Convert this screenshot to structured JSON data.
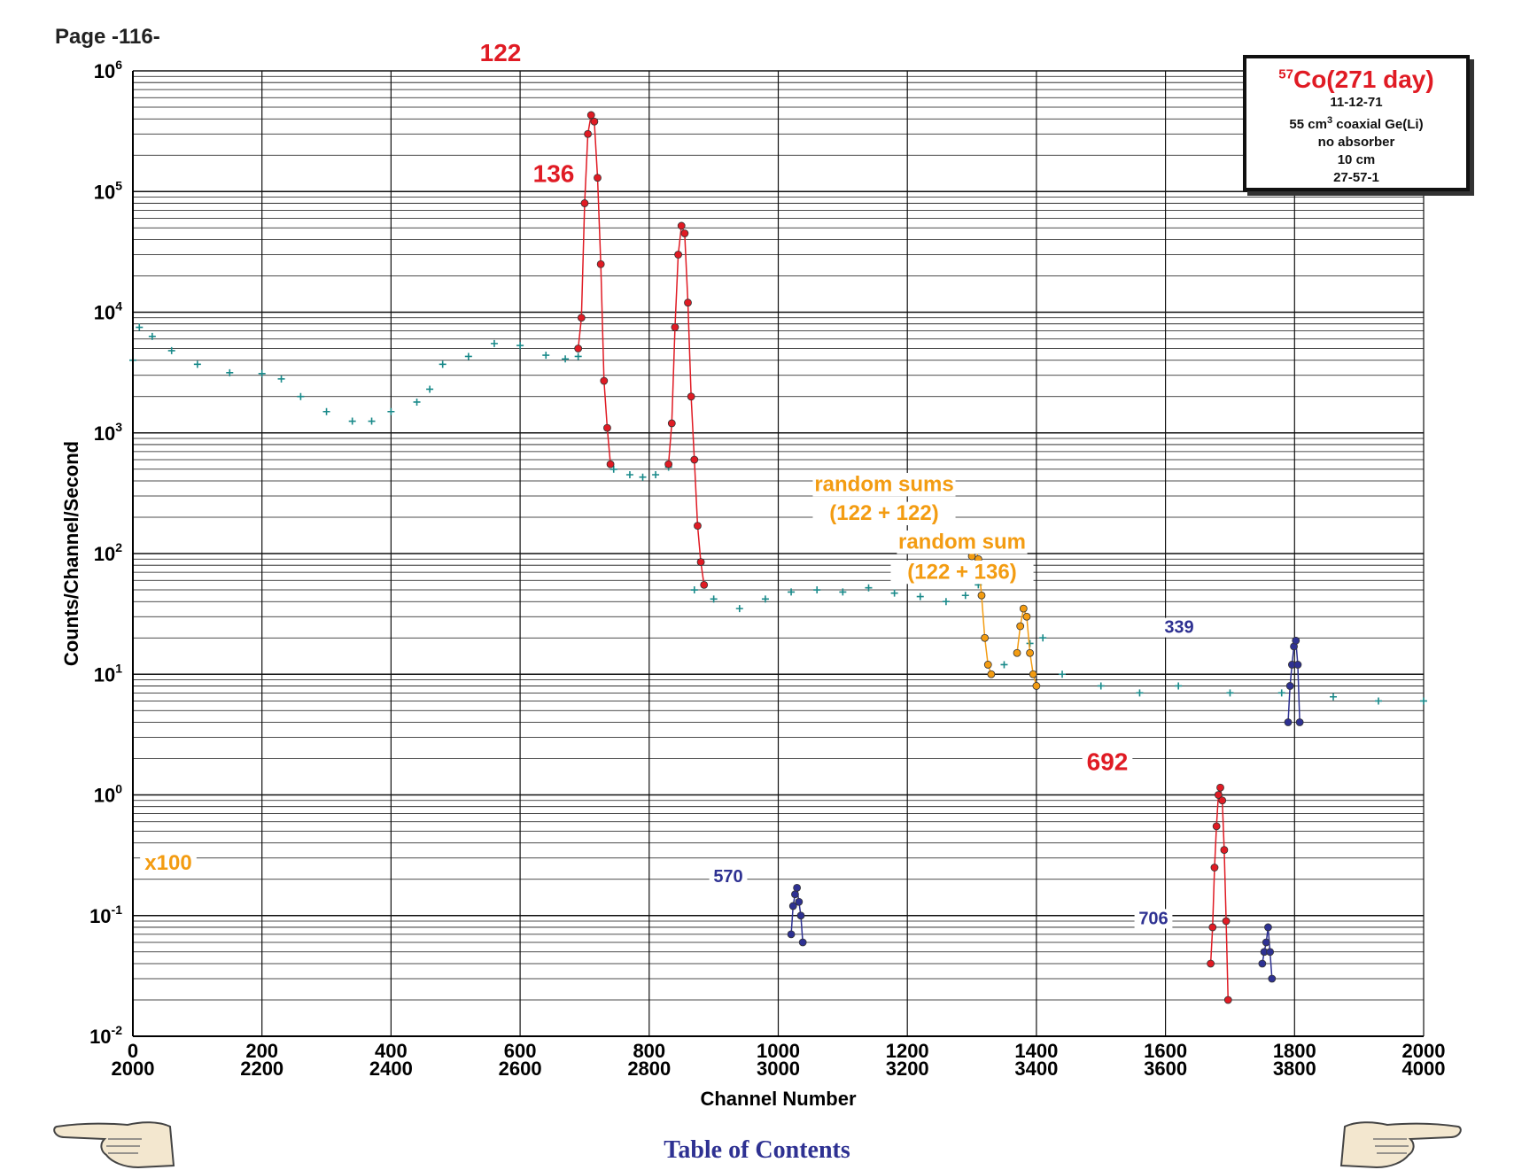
{
  "page": {
    "label": "Page -116-"
  },
  "legend": {
    "isotope_mass": "57",
    "isotope_title": "Co(271 day)",
    "date": "11-12-71",
    "detector_prefix": "55 cm",
    "detector_sup": "3",
    "detector_suffix": " coaxial Ge(Li)",
    "absorber": "no absorber",
    "distance": "10 cm",
    "id": "27-57-1"
  },
  "navigation": {
    "toc_label": "Table of Contents"
  },
  "colors": {
    "peak_red": "#e01b24",
    "sum_orange": "#f39c12",
    "minor_blue": "#2e3192",
    "spectrum_teal": "#1a8a8a",
    "grid": "#111111"
  },
  "icons": {
    "left": "hand-pointing-left-icon",
    "right": "hand-pointing-right-icon"
  },
  "chart_data": {
    "type": "scatter",
    "xlabel": "Channel Number",
    "ylabel": "Counts/Channel/Second",
    "xlim": [
      0,
      2000
    ],
    "x_ticks_bottom": [
      "0",
      "200",
      "400",
      "600",
      "800",
      "1000",
      "1200",
      "1400",
      "1600",
      "1800",
      "2000"
    ],
    "x_ticks_top": [
      "2000",
      "2200",
      "2400",
      "2600",
      "2800",
      "3000",
      "3200",
      "3400",
      "3600",
      "3800",
      "4000"
    ],
    "y_scale": "log",
    "ylim": [
      0.01,
      1000000
    ],
    "y_tick_exponents": [
      "-2",
      "-1",
      "0",
      "1",
      "2",
      "3",
      "4",
      "5",
      "6"
    ],
    "grid": true,
    "series": [
      {
        "name": "spectrum",
        "points": [
          [
            0,
            4000
          ],
          [
            10,
            7500
          ],
          [
            30,
            6300
          ],
          [
            60,
            4800
          ],
          [
            100,
            3700
          ],
          [
            150,
            3150
          ],
          [
            200,
            3100
          ],
          [
            230,
            2800
          ],
          [
            260,
            2000
          ],
          [
            300,
            1500
          ],
          [
            340,
            1250
          ],
          [
            370,
            1250
          ],
          [
            400,
            1500
          ],
          [
            440,
            1800
          ],
          [
            460,
            2300
          ],
          [
            480,
            3700
          ],
          [
            520,
            4300
          ],
          [
            560,
            5500
          ],
          [
            600,
            5300
          ],
          [
            640,
            4400
          ],
          [
            670,
            4100
          ],
          [
            690,
            4300
          ]
        ]
      },
      {
        "name": "spectrum-valley",
        "points": [
          [
            745,
            500
          ],
          [
            770,
            450
          ],
          [
            790,
            430
          ],
          [
            810,
            450
          ],
          [
            830,
            520
          ]
        ]
      },
      {
        "name": "spectrum-plateau",
        "points": [
          [
            870,
            50
          ],
          [
            900,
            42
          ],
          [
            940,
            35
          ],
          [
            980,
            42
          ],
          [
            1020,
            48
          ],
          [
            1060,
            50
          ],
          [
            1100,
            48
          ],
          [
            1140,
            52
          ],
          [
            1180,
            47
          ],
          [
            1220,
            44
          ],
          [
            1260,
            40
          ],
          [
            1290,
            45
          ],
          [
            1310,
            55
          ],
          [
            1330,
            70
          ]
        ]
      },
      {
        "name": "spectrum-step",
        "points": [
          [
            1350,
            12
          ],
          [
            1370,
            15
          ],
          [
            1390,
            18
          ],
          [
            1410,
            20
          ]
        ]
      },
      {
        "name": "tail",
        "points": [
          [
            1440,
            10
          ],
          [
            1500,
            8
          ],
          [
            1560,
            7
          ],
          [
            1620,
            8
          ],
          [
            1700,
            7
          ],
          [
            1780,
            7
          ],
          [
            1860,
            6.5
          ],
          [
            1930,
            6
          ],
          [
            2000,
            6
          ]
        ]
      },
      {
        "name": "peak-122",
        "points": [
          [
            690,
            5000
          ],
          [
            695,
            9000
          ],
          [
            700,
            80000
          ],
          [
            705,
            300000
          ],
          [
            710,
            430000
          ],
          [
            715,
            380000
          ],
          [
            720,
            130000
          ],
          [
            725,
            25000
          ],
          [
            730,
            2700
          ],
          [
            735,
            1100
          ],
          [
            740,
            550
          ]
        ]
      },
      {
        "name": "peak-136",
        "points": [
          [
            830,
            550
          ],
          [
            835,
            1200
          ],
          [
            840,
            7500
          ],
          [
            845,
            30000
          ],
          [
            850,
            52000
          ],
          [
            855,
            45000
          ],
          [
            860,
            12000
          ],
          [
            865,
            2000
          ],
          [
            870,
            600
          ],
          [
            875,
            170
          ],
          [
            880,
            85
          ],
          [
            885,
            55
          ]
        ]
      },
      {
        "name": "sum-122-122",
        "points": [
          [
            1300,
            95
          ],
          [
            1305,
            120
          ],
          [
            1310,
            90
          ],
          [
            1315,
            45
          ],
          [
            1320,
            20
          ],
          [
            1325,
            12
          ],
          [
            1330,
            10
          ]
        ]
      },
      {
        "name": "sum-122-136",
        "points": [
          [
            1370,
            15
          ],
          [
            1375,
            25
          ],
          [
            1380,
            35
          ],
          [
            1385,
            30
          ],
          [
            1390,
            15
          ],
          [
            1395,
            10
          ],
          [
            1400,
            8
          ]
        ]
      },
      {
        "name": "peak-339",
        "points": [
          [
            1790,
            4
          ],
          [
            1793,
            8
          ],
          [
            1796,
            12
          ],
          [
            1799,
            17
          ],
          [
            1802,
            19
          ],
          [
            1805,
            12
          ],
          [
            1808,
            4
          ]
        ]
      },
      {
        "name": "peak-692",
        "points": [
          [
            1670,
            0.04
          ],
          [
            1673,
            0.08
          ],
          [
            1676,
            0.25
          ],
          [
            1679,
            0.55
          ],
          [
            1682,
            1.0
          ],
          [
            1685,
            1.15
          ],
          [
            1688,
            0.9
          ],
          [
            1691,
            0.35
          ],
          [
            1694,
            0.09
          ],
          [
            1697,
            0.02
          ]
        ]
      },
      {
        "name": "peak-570",
        "points": [
          [
            1020,
            0.07
          ],
          [
            1023,
            0.12
          ],
          [
            1026,
            0.15
          ],
          [
            1029,
            0.17
          ],
          [
            1032,
            0.13
          ],
          [
            1035,
            0.1
          ],
          [
            1038,
            0.06
          ]
        ]
      },
      {
        "name": "peak-706",
        "points": [
          [
            1750,
            0.04
          ],
          [
            1753,
            0.05
          ],
          [
            1756,
            0.06
          ],
          [
            1759,
            0.08
          ],
          [
            1762,
            0.05
          ],
          [
            1765,
            0.03
          ]
        ]
      }
    ],
    "scaled_region_note": "x100",
    "annotations": [
      {
        "text": "122",
        "color": "red"
      },
      {
        "text": "136",
        "color": "red"
      },
      {
        "text": "random sums",
        "color": "orange"
      },
      {
        "text": "(122 + 122)",
        "color": "orange"
      },
      {
        "text": "random sum",
        "color": "orange"
      },
      {
        "text": "(122 + 136)",
        "color": "orange"
      },
      {
        "text": "339",
        "color": "blue"
      },
      {
        "text": "692",
        "color": "red"
      },
      {
        "text": "570",
        "color": "blue"
      },
      {
        "text": "706",
        "color": "blue"
      },
      {
        "text": "x100",
        "color": "orange"
      }
    ]
  }
}
